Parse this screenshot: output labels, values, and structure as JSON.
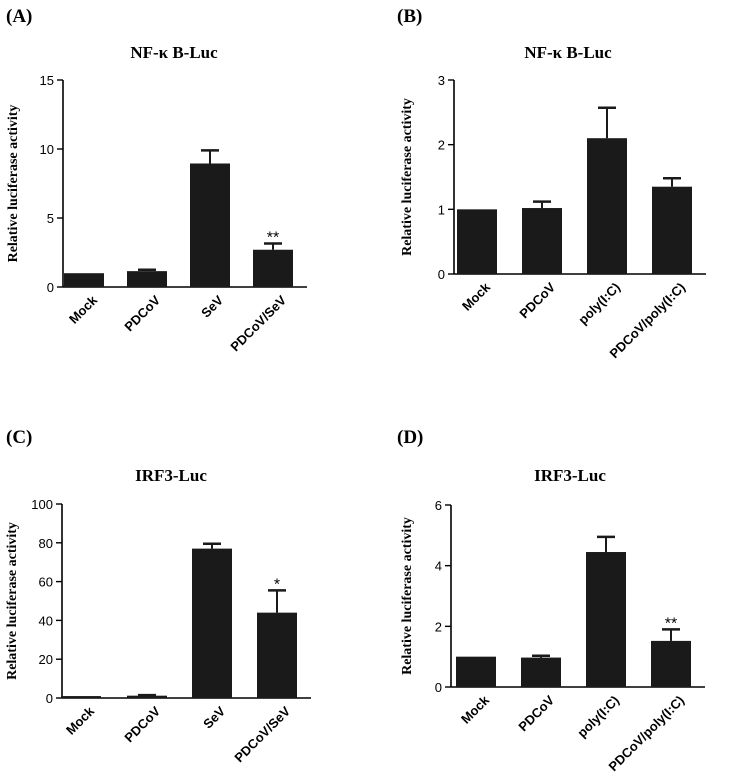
{
  "chart_data": [
    {
      "type": "bar",
      "panel_label": "(A)",
      "title": "NF-κ B-Luc",
      "ylabel": "Relative luciferase activity",
      "categories": [
        "Mock",
        "PDCoV",
        "SeV",
        "PDCoV/SeV"
      ],
      "values": [
        1.0,
        1.15,
        8.95,
        2.7
      ],
      "errors": [
        0.0,
        0.1,
        0.95,
        0.45
      ],
      "significance": [
        "",
        "",
        "",
        "**"
      ],
      "ylim": [
        0,
        15
      ],
      "yticks": [
        "0",
        "5",
        "10",
        "15"
      ]
    },
    {
      "type": "bar",
      "panel_label": "(B)",
      "title": "NF-κ B-Luc",
      "ylabel": "Relative luciferase activity",
      "categories": [
        "Mock",
        "PDCoV",
        "poly(I:C)",
        "PDCoV/poly(I:C)"
      ],
      "values": [
        1.0,
        1.02,
        2.1,
        1.35
      ],
      "errors": [
        0.0,
        0.1,
        0.47,
        0.13
      ],
      "significance": [
        "",
        "",
        "",
        ""
      ],
      "ylim": [
        0,
        3
      ],
      "yticks": [
        "0",
        "1",
        "2",
        "3"
      ]
    },
    {
      "type": "bar",
      "panel_label": "(C)",
      "title": "IRF3-Luc",
      "ylabel": "Relative luciferase activity",
      "categories": [
        "Mock",
        "PDCoV",
        "SeV",
        "PDCoV/SeV"
      ],
      "values": [
        1.0,
        1.2,
        77,
        44
      ],
      "errors": [
        0.0,
        0.3,
        2.5,
        11.5
      ],
      "significance": [
        "",
        "",
        "",
        "*"
      ],
      "ylim": [
        0,
        100
      ],
      "yticks": [
        "0",
        "20",
        "40",
        "60",
        "80",
        "100"
      ]
    },
    {
      "type": "bar",
      "panel_label": "(D)",
      "title": "IRF3-Luc",
      "ylabel": "Relative luciferase activity",
      "categories": [
        "Mock",
        "PDCoV",
        "poly(I:C)",
        "PDCoV/poly(I:C)"
      ],
      "values": [
        1.0,
        0.97,
        4.45,
        1.52
      ],
      "errors": [
        0.0,
        0.06,
        0.5,
        0.38
      ],
      "significance": [
        "",
        "",
        "",
        "**"
      ],
      "ylim": [
        0,
        6
      ],
      "yticks": [
        "0",
        "2",
        "4",
        "6"
      ]
    }
  ]
}
